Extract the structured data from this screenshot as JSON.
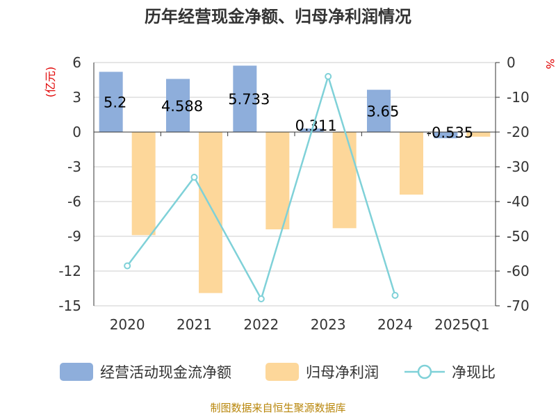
{
  "chart_data": {
    "type": "bar",
    "title": "历年经营现金净额、归母净利润情况",
    "categories": [
      "2020",
      "2021",
      "2022",
      "2023",
      "2024",
      "2025Q1"
    ],
    "y_left": {
      "unit": "(亿元)",
      "min": -15,
      "max": 6,
      "ticks": [
        6,
        3,
        0,
        -3,
        -6,
        -9,
        -12,
        -15
      ]
    },
    "y_right": {
      "unit": "%",
      "min": -70,
      "max": 0,
      "ticks": [
        0,
        -10,
        -20,
        -30,
        -40,
        -50,
        -60,
        -70
      ]
    },
    "series": [
      {
        "name": "经营活动现金流净额",
        "type": "bar",
        "axis": "left",
        "color": "#8eaedb",
        "values": [
          5.2,
          4.588,
          5.733,
          0.311,
          3.65,
          -0.535
        ],
        "labels": [
          "5.2",
          "4.588",
          "5.733",
          "0.311",
          "3.65",
          "-0.535"
        ]
      },
      {
        "name": "归母净利润",
        "type": "bar",
        "axis": "left",
        "color": "#fdd79a",
        "values": [
          -8.9,
          -13.9,
          -8.4,
          -8.3,
          -5.4,
          -0.4
        ]
      },
      {
        "name": "净现比",
        "type": "line",
        "axis": "right",
        "color": "#7fd1d8",
        "values": [
          -58.5,
          -33.0,
          -68.0,
          -4.0,
          -67.0,
          null
        ]
      }
    ],
    "grid": true,
    "legend_position": "bottom"
  },
  "source": "制图数据来自恒生聚源数据库"
}
